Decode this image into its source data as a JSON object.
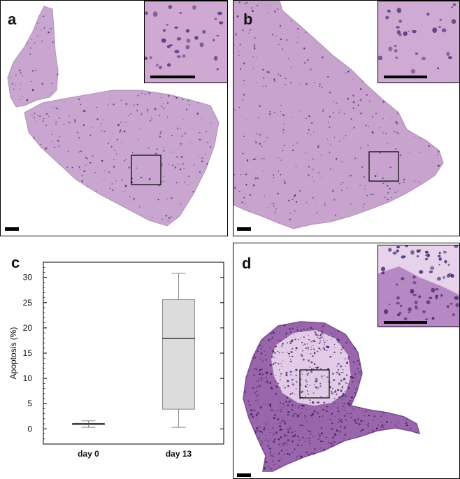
{
  "panels": {
    "a": {
      "letter": "a",
      "colors": {
        "tissue": "#c9a6cf",
        "nuclei": "#4b2f6e"
      }
    },
    "b": {
      "letter": "b",
      "colors": {
        "tissue": "#c8a3cd",
        "nuclei": "#4b2f6e"
      }
    },
    "c": {
      "letter": "c"
    },
    "d": {
      "letter": "d",
      "colors": {
        "tissue": "#9a66ab",
        "nuclei": "#3e1f62"
      }
    }
  },
  "chart_data": {
    "type": "boxplot",
    "title": "",
    "ylabel": "Apoptosis (%)",
    "xlabel": "",
    "ylim": [
      -3,
      33
    ],
    "yticks": [
      0,
      5,
      10,
      15,
      20,
      25,
      30
    ],
    "categories": [
      "day 0",
      "day 13"
    ],
    "boxes": [
      {
        "category": "day 0",
        "min": 0.3,
        "q1": 0.8,
        "median": 1.0,
        "q3": 1.1,
        "max": 1.6
      },
      {
        "category": "day 13",
        "min": 0.3,
        "q1": 3.9,
        "median": 17.9,
        "q3": 25.6,
        "max": 30.8
      }
    ],
    "grid": false,
    "colors": {
      "box_fill": "#dcdcdc",
      "box_stroke": "#8a8a8a",
      "median": "#000000"
    }
  }
}
